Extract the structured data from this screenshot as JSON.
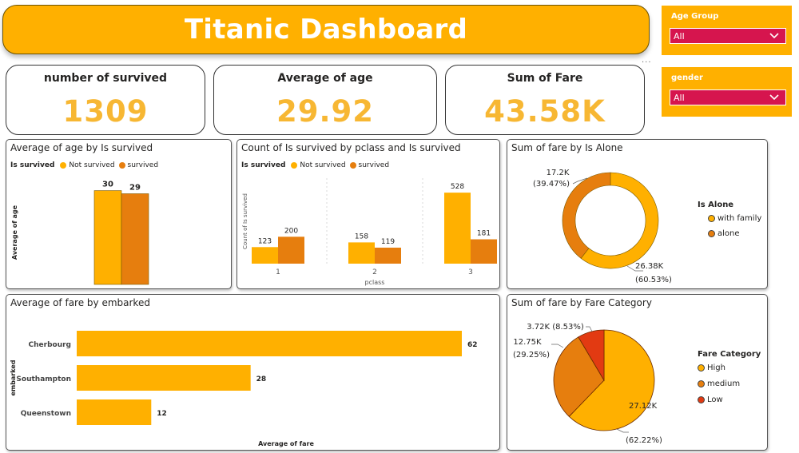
{
  "title": "Titanic Dashboard",
  "slicers": [
    {
      "label": "Age Group",
      "value": "All"
    },
    {
      "label": "gender",
      "value": "All"
    }
  ],
  "kpis": [
    {
      "label": "number of survived",
      "value": "1309"
    },
    {
      "label": "Average of age",
      "value": "29.92"
    },
    {
      "label": "Sum of Fare",
      "value": "43.58K"
    }
  ],
  "colors": {
    "primary": "#ffb000",
    "secondary": "#e67e0e",
    "tertiary": "#e23a12",
    "slicer_box": "#d6154e",
    "kpi_value": "#f7b733"
  },
  "chart_data": [
    {
      "type": "bar",
      "title": "Average of age by Is survived",
      "ylabel": "Average of age",
      "xlabel": "",
      "legend_title": "Is survived",
      "series": [
        {
          "name": "Not survived",
          "values": [
            30
          ]
        },
        {
          "name": "survived",
          "values": [
            29
          ]
        }
      ],
      "data_labels": [
        "30",
        "29"
      ],
      "ylim": [
        0,
        35
      ],
      "grid": false
    },
    {
      "type": "bar",
      "title": "Count of Is survived by pclass and Is survived",
      "ylabel": "Count of Is survived",
      "xlabel": "pclass",
      "legend_title": "Is survived",
      "categories": [
        "1",
        "2",
        "3"
      ],
      "series": [
        {
          "name": "Not survived",
          "values": [
            123,
            158,
            528
          ]
        },
        {
          "name": "survived",
          "values": [
            200,
            119,
            181
          ]
        }
      ],
      "ylim": [
        0,
        600
      ],
      "grid": false
    },
    {
      "type": "pie",
      "variant": "donut",
      "title": "Sum of fare by Is Alone",
      "legend_title": "Is Alone",
      "slices": [
        {
          "name": "with family",
          "value": 26380,
          "label": "26.38K",
          "percent": "(60.53%)"
        },
        {
          "name": "alone",
          "value": 17200,
          "label": "17.2K",
          "percent": "(39.47%)"
        }
      ]
    },
    {
      "type": "bar",
      "orientation": "horizontal",
      "title": "Average of fare by embarked",
      "xlabel": "Average of fare",
      "ylabel": "embarked",
      "categories": [
        "Cherbourg",
        "Southampton",
        "Queenstown"
      ],
      "values": [
        62,
        28,
        12
      ],
      "data_labels": [
        "62",
        "28",
        "12"
      ],
      "xlim": [
        0,
        70
      ],
      "grid": false
    },
    {
      "type": "pie",
      "title": "Sum of fare by Fare Category",
      "legend_title": "Fare Category",
      "slices": [
        {
          "name": "High",
          "value": 27120,
          "label": "27.12K",
          "percent": "(62.22%)"
        },
        {
          "name": "medium",
          "value": 12750,
          "label": "12.75K",
          "percent": "(29.25%)"
        },
        {
          "name": "Low",
          "value": 3720,
          "label": "3.72K",
          "percent": "(8.53%)"
        }
      ]
    }
  ]
}
